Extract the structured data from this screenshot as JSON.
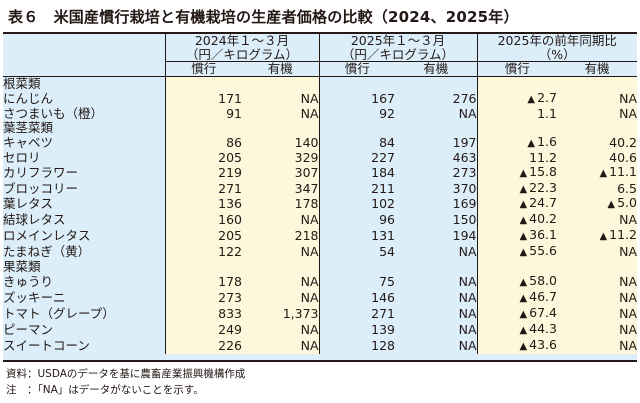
{
  "title": "表６　米国産慣行栽培と有機栽培の生産者価格の比較（2024、2025年）",
  "headers": {
    "g2024_line1": "2024年１～３月",
    "g2024_line2": "（円／キログラム）",
    "g2025_line1": "2025年１～３月",
    "g2025_line2": "（円／キログラム）",
    "gchg_line1": "2025年の前年同期比",
    "gchg_line2": "（%）",
    "conventional": "慣行",
    "organic": "有機"
  },
  "table": {
    "columns": [
      "item",
      "2024_conventional",
      "2024_organic",
      "2025_conventional",
      "2025_organic",
      "change_conventional",
      "change_organic"
    ],
    "negative_marker": "▲",
    "rows": [
      {
        "type": "category",
        "name": "根菜類"
      },
      {
        "type": "item",
        "name": "にんじん",
        "c24": "171",
        "o24": "NA",
        "c25": "167",
        "o25": "276",
        "cc": "2.7",
        "cc_neg": true,
        "co": "NA",
        "co_neg": false
      },
      {
        "type": "item",
        "name": "さつまいも（橙）",
        "c24": "91",
        "o24": "NA",
        "c25": "92",
        "o25": "NA",
        "cc": "1.1",
        "cc_neg": false,
        "co": "NA",
        "co_neg": false
      },
      {
        "type": "category",
        "name": "葉茎菜類"
      },
      {
        "type": "item",
        "name": "キャベツ",
        "c24": "86",
        "o24": "140",
        "c25": "84",
        "o25": "197",
        "cc": "1.6",
        "cc_neg": true,
        "co": "40.2",
        "co_neg": false
      },
      {
        "type": "item",
        "name": "セロリ",
        "c24": "205",
        "o24": "329",
        "c25": "227",
        "o25": "463",
        "cc": "11.2",
        "cc_neg": false,
        "co": "40.6",
        "co_neg": false
      },
      {
        "type": "item",
        "name": "カリフラワー",
        "c24": "219",
        "o24": "307",
        "c25": "184",
        "o25": "273",
        "cc": "15.8",
        "cc_neg": true,
        "co": "11.1",
        "co_neg": true
      },
      {
        "type": "item",
        "name": "ブロッコリー",
        "c24": "271",
        "o24": "347",
        "c25": "211",
        "o25": "370",
        "cc": "22.3",
        "cc_neg": true,
        "co": "6.5",
        "co_neg": false
      },
      {
        "type": "item",
        "name": "葉レタス",
        "c24": "136",
        "o24": "178",
        "c25": "102",
        "o25": "169",
        "cc": "24.7",
        "cc_neg": true,
        "co": "5.0",
        "co_neg": true
      },
      {
        "type": "item",
        "name": "結球レタス",
        "c24": "160",
        "o24": "NA",
        "c25": "96",
        "o25": "150",
        "cc": "40.2",
        "cc_neg": true,
        "co": "NA",
        "co_neg": false
      },
      {
        "type": "item",
        "name": "ロメインレタス",
        "c24": "205",
        "o24": "218",
        "c25": "131",
        "o25": "194",
        "cc": "36.1",
        "cc_neg": true,
        "co": "11.2",
        "co_neg": true
      },
      {
        "type": "item",
        "name": "たまねぎ（黄）",
        "c24": "122",
        "o24": "NA",
        "c25": "54",
        "o25": "NA",
        "cc": "55.6",
        "cc_neg": true,
        "co": "NA",
        "co_neg": false
      },
      {
        "type": "category",
        "name": "果菜類"
      },
      {
        "type": "item",
        "name": "きゅうり",
        "c24": "178",
        "o24": "NA",
        "c25": "75",
        "o25": "NA",
        "cc": "58.0",
        "cc_neg": true,
        "co": "NA",
        "co_neg": false
      },
      {
        "type": "item",
        "name": "ズッキーニ",
        "c24": "273",
        "o24": "NA",
        "c25": "146",
        "o25": "NA",
        "cc": "46.7",
        "cc_neg": true,
        "co": "NA",
        "co_neg": false
      },
      {
        "type": "item",
        "name": "トマト（グレープ）",
        "c24": "833",
        "o24": "1,373",
        "c25": "271",
        "o25": "NA",
        "cc": "67.4",
        "cc_neg": true,
        "co": "NA",
        "co_neg": false
      },
      {
        "type": "item",
        "name": "ピーマン",
        "c24": "249",
        "o24": "NA",
        "c25": "139",
        "o25": "NA",
        "cc": "44.3",
        "cc_neg": true,
        "co": "NA",
        "co_neg": false
      },
      {
        "type": "item",
        "name": "スイートコーン",
        "c24": "226",
        "o24": "NA",
        "c25": "128",
        "o25": "NA",
        "cc": "43.6",
        "cc_neg": true,
        "co": "NA",
        "co_neg": false
      }
    ]
  },
  "notes": {
    "source": "資料：USDAのデータを基に農畜産業振興機構作成",
    "note": "注　：「NA」はデータがないことを示す。"
  }
}
